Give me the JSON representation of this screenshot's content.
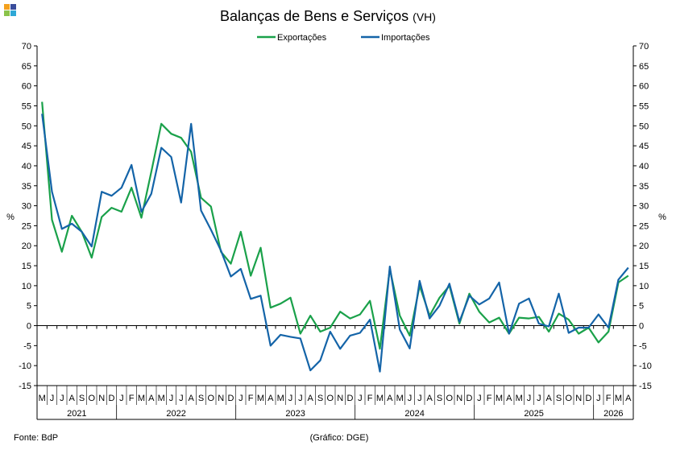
{
  "header": {
    "title": "Balanças de Bens e Serviços",
    "subtitle": "(VH)"
  },
  "footer": {
    "source": "Fonte: BdP",
    "credit": "(Gráfico: DGE)"
  },
  "chart_data": {
    "type": "line",
    "title": "Balanças de Bens e Serviços",
    "subtitle": "(VH)",
    "ylabel_left": "%",
    "ylabel_right": "%",
    "ylim": [
      -15,
      70
    ],
    "yticks": [
      70,
      65,
      60,
      55,
      50,
      45,
      40,
      35,
      30,
      25,
      20,
      15,
      10,
      5,
      0,
      -5,
      -10,
      -15
    ],
    "legend_position": "top-center",
    "month_labels": [
      "M",
      "J",
      "J",
      "A",
      "S",
      "O",
      "N",
      "D",
      "J",
      "F",
      "M",
      "A",
      "M",
      "J",
      "J",
      "A",
      "S",
      "O",
      "N",
      "D",
      "J",
      "F",
      "M",
      "A",
      "M",
      "J",
      "J",
      "A",
      "S",
      "O",
      "N",
      "D",
      "J",
      "F",
      "M",
      "A",
      "M",
      "J",
      "J",
      "A",
      "S",
      "O",
      "N",
      "D",
      "J",
      "F",
      "M",
      "A",
      "M",
      "J",
      "J",
      "A",
      "S",
      "O",
      "N",
      "D",
      "J",
      "F",
      "M",
      "A"
    ],
    "years": [
      {
        "label": "2021",
        "start": 0,
        "count": 8
      },
      {
        "label": "2022",
        "start": 8,
        "count": 12
      },
      {
        "label": "2023",
        "start": 20,
        "count": 12
      },
      {
        "label": "2024",
        "start": 32,
        "count": 12
      },
      {
        "label": "2025",
        "start": 44,
        "count": 12
      },
      {
        "label": "2026",
        "start": 56,
        "count": 4
      }
    ],
    "series": [
      {
        "name": "Exportações",
        "color": "#1aa14a",
        "values": [
          56,
          26.5,
          18.5,
          27.5,
          23.5,
          17,
          27.2,
          29.5,
          28.5,
          34.5,
          27,
          38.5,
          50.5,
          48,
          47,
          43.5,
          32,
          29.8,
          18.5,
          15.5,
          23.5,
          12.5,
          19.5,
          4.5,
          5.5,
          7,
          -2,
          2.5,
          -1.5,
          -0.5,
          3.5,
          1.8,
          2.8,
          6.2,
          -5.8,
          14.2,
          2.5,
          -2.5,
          10,
          2.5,
          7,
          10,
          0.5,
          8,
          3.5,
          0.8,
          2,
          -2,
          2,
          1.8,
          2.2,
          -1.5,
          3,
          1.5,
          -2,
          -0.5,
          -4.2,
          -1.5,
          10.8,
          12.5
        ]
      },
      {
        "name": "Importações",
        "color": "#1464a8",
        "values": [
          53,
          33.5,
          24.2,
          25.5,
          23.5,
          19.8,
          33.5,
          32.5,
          34.5,
          40.2,
          28.5,
          33,
          44.5,
          42.2,
          30.8,
          50.5,
          28.8,
          24,
          18.8,
          12.3,
          14.2,
          6.7,
          7.5,
          -5,
          -2.3,
          -2.8,
          -3.2,
          -11.2,
          -8.7,
          -1.5,
          -5.8,
          -2.5,
          -1.8,
          1.5,
          -11.5,
          14.8,
          -1,
          -5.7,
          11.2,
          1.8,
          5,
          10.5,
          1,
          7.5,
          5.3,
          6.8,
          10.8,
          -2,
          5.5,
          6.8,
          0.5,
          -0.2,
          8,
          -1.8,
          -0.5,
          -0.5,
          2.8,
          -0.5,
          11.5,
          14.5
        ]
      }
    ]
  }
}
